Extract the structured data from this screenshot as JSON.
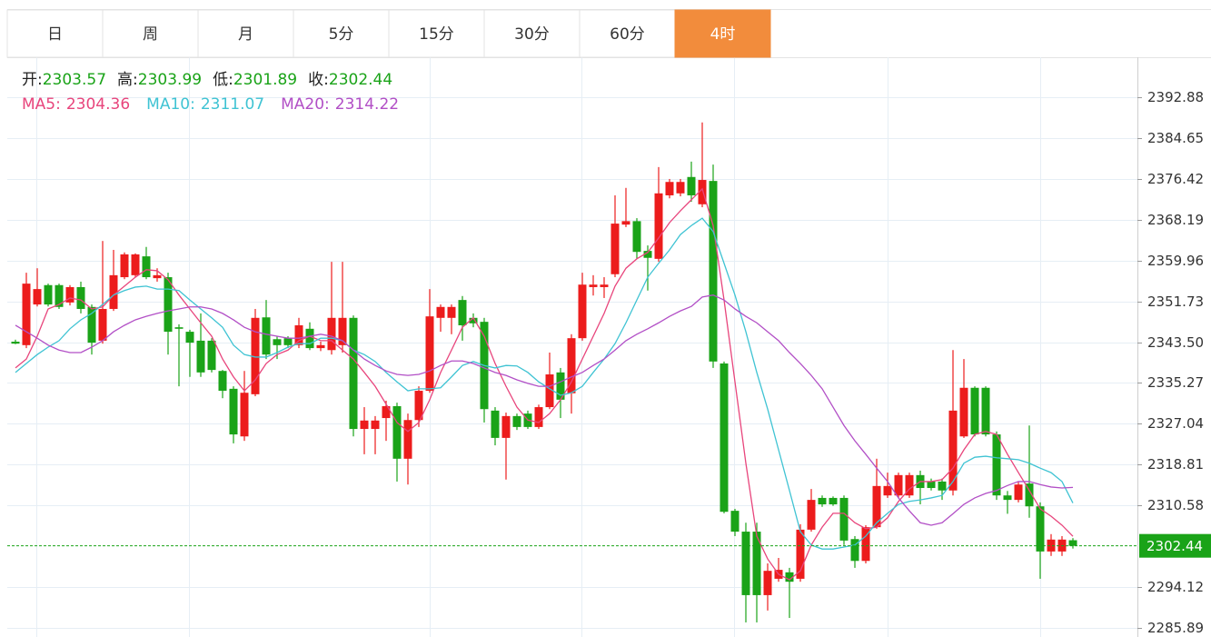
{
  "tabs": {
    "items": [
      "日",
      "周",
      "月",
      "5分",
      "15分",
      "30分",
      "60分",
      "4时"
    ],
    "active": 7,
    "active_color": "#f28c3c"
  },
  "chart_data": {
    "type": "candlestick",
    "up_color": "#ec1c1c",
    "down_color": "#1aa318",
    "ohlc_labels": [
      "开:",
      "高:",
      "低:",
      "收:"
    ],
    "open": [
      2343.6,
      2342.9,
      2351.1,
      2355.0,
      2355.0,
      2351.5,
      2354.6,
      2350.6,
      2343.8,
      2350.2,
      2356.6,
      2357.0,
      2360.8,
      2356.4,
      2356.6,
      2346.5,
      2345.6,
      2343.8,
      2343.8,
      2337.7,
      2334.1,
      2324.5,
      2333.0,
      2348.5,
      2344.1,
      2344.3,
      2342.9,
      2346.2,
      2342.3,
      2341.9,
      2342.9,
      2348.4,
      2326.0,
      2326.0,
      2328.2,
      2330.6,
      2320.0,
      2327.8,
      2333.7,
      2348.4,
      2348.4,
      2352.0,
      2348.4,
      2347.6,
      2329.7,
      2324.2,
      2328.6,
      2329.1,
      2326.4,
      2330.4,
      2337.4,
      2333.2,
      2344.3,
      2354.6,
      2354.6,
      2357.2,
      2367.2,
      2367.9,
      2361.9,
      2360.3,
      2373.1,
      2373.5,
      2376.8,
      2371.3,
      2376.0,
      2339.2,
      2309.5,
      2305.3,
      2305.3,
      2292.5,
      2295.8,
      2297.1,
      2295.8,
      2305.7,
      2312.1,
      2312.1,
      2312.1,
      2303.8,
      2299.4,
      2306.2,
      2312.6,
      2312.6,
      2312.6,
      2316.7,
      2315.4,
      2315.4,
      2313.6,
      2324.5,
      2334.3,
      2334.3,
      2324.9,
      2312.6,
      2311.7,
      2315.0,
      2310.4,
      2301.3,
      2301.3,
      2303.57
    ],
    "high": [
      2344.0,
      2357.5,
      2358.4,
      2355.3,
      2355.3,
      2355.0,
      2355.7,
      2351.1,
      2363.9,
      2362.1,
      2361.6,
      2361.4,
      2362.7,
      2358.4,
      2357.5,
      2347.1,
      2346.0,
      2349.3,
      2344.3,
      2337.9,
      2334.6,
      2337.7,
      2350.2,
      2352.0,
      2344.7,
      2344.7,
      2348.4,
      2347.5,
      2343.6,
      2359.7,
      2359.7,
      2348.9,
      2330.4,
      2328.6,
      2331.7,
      2331.3,
      2329.1,
      2334.6,
      2354.2,
      2351.1,
      2351.1,
      2352.8,
      2349.3,
      2348.4,
      2330.4,
      2329.3,
      2329.1,
      2329.7,
      2330.9,
      2341.4,
      2338.3,
      2345.1,
      2357.5,
      2357.0,
      2356.6,
      2373.1,
      2374.6,
      2368.5,
      2363.0,
      2378.8,
      2376.4,
      2376.4,
      2379.9,
      2387.8,
      2379.3,
      2339.6,
      2309.9,
      2307.1,
      2307.1,
      2298.9,
      2300.0,
      2298.0,
      2306.8,
      2313.9,
      2312.6,
      2312.4,
      2312.6,
      2304.4,
      2306.6,
      2320.0,
      2317.2,
      2317.2,
      2317.2,
      2317.6,
      2316.0,
      2316.0,
      2341.9,
      2340.1,
      2334.6,
      2334.6,
      2325.5,
      2313.5,
      2315.4,
      2326.7,
      2311.2,
      2304.8,
      2304.4,
      2303.99
    ],
    "low": [
      2343.1,
      2342.3,
      2350.7,
      2350.7,
      2350.2,
      2350.9,
      2349.3,
      2341.0,
      2343.2,
      2349.8,
      2356.2,
      2356.6,
      2356.2,
      2355.7,
      2341.0,
      2334.6,
      2336.5,
      2336.5,
      2337.4,
      2332.2,
      2323.1,
      2323.6,
      2332.6,
      2340.1,
      2340.1,
      2342.3,
      2342.3,
      2341.9,
      2341.7,
      2341.0,
      2341.4,
      2324.5,
      2320.9,
      2320.9,
      2323.6,
      2315.4,
      2314.8,
      2326.4,
      2333.3,
      2345.6,
      2345.1,
      2343.8,
      2346.5,
      2327.3,
      2322.7,
      2315.8,
      2325.8,
      2326.0,
      2326.0,
      2330.0,
      2328.2,
      2329.1,
      2343.8,
      2352.9,
      2352.4,
      2356.6,
      2366.7,
      2360.3,
      2353.9,
      2359.7,
      2372.5,
      2372.9,
      2371.8,
      2370.7,
      2338.3,
      2309.0,
      2304.4,
      2287.0,
      2287.0,
      2289.4,
      2295.2,
      2287.9,
      2295.2,
      2305.3,
      2310.3,
      2310.5,
      2302.6,
      2298.0,
      2298.9,
      2305.9,
      2312.1,
      2312.1,
      2312.1,
      2310.8,
      2313.6,
      2311.7,
      2312.6,
      2324.2,
      2324.5,
      2324.5,
      2311.7,
      2308.9,
      2311.2,
      2308.1,
      2295.8,
      2300.4,
      2300.4,
      2301.89
    ],
    "close": [
      2343.2,
      2355.3,
      2354.2,
      2351.1,
      2350.6,
      2354.6,
      2350.2,
      2343.4,
      2350.2,
      2357.0,
      2361.2,
      2361.2,
      2356.6,
      2357.0,
      2345.6,
      2346.2,
      2343.4,
      2337.4,
      2337.9,
      2333.7,
      2324.9,
      2333.3,
      2348.4,
      2341.0,
      2342.9,
      2342.9,
      2346.9,
      2342.3,
      2342.9,
      2348.4,
      2348.4,
      2326.0,
      2327.7,
      2327.7,
      2330.6,
      2320.0,
      2327.8,
      2333.7,
      2348.7,
      2350.6,
      2350.6,
      2346.9,
      2347.3,
      2330.0,
      2324.2,
      2328.6,
      2326.4,
      2326.4,
      2330.4,
      2337.0,
      2331.9,
      2344.3,
      2355.1,
      2355.1,
      2355.1,
      2367.4,
      2367.9,
      2361.7,
      2360.5,
      2373.5,
      2375.8,
      2375.8,
      2373.1,
      2376.2,
      2339.6,
      2309.3,
      2305.3,
      2292.5,
      2292.5,
      2297.4,
      2297.6,
      2295.2,
      2305.7,
      2311.7,
      2310.8,
      2310.8,
      2303.5,
      2299.4,
      2306.2,
      2314.5,
      2314.5,
      2316.7,
      2316.7,
      2314.1,
      2314.1,
      2313.6,
      2329.7,
      2334.3,
      2324.9,
      2324.9,
      2312.6,
      2311.7,
      2314.8,
      2310.4,
      2301.3,
      2303.7,
      2303.7,
      2302.44
    ],
    "series": [
      {
        "name": "MA5:",
        "color": "#e8457c",
        "values": [
          2338.3,
          2340.1,
          2344.7,
          2350.2,
          2351.1,
          2352.4,
          2352.0,
          2350.2,
          2350.6,
          2353.0,
          2354.8,
          2356.6,
          2358.1,
          2357.9,
          2356.1,
          2353.0,
          2350.2,
          2347.4,
          2344.7,
          2340.1,
          2336.5,
          2333.7,
          2335.9,
          2339.2,
          2341.0,
          2341.9,
          2343.8,
          2344.7,
          2343.8,
          2343.8,
          2341.9,
          2340.1,
          2337.4,
          2334.6,
          2331.0,
          2327.3,
          2325.5,
          2327.3,
          2331.9,
          2337.4,
          2341.9,
          2346.5,
          2348.4,
          2344.7,
          2339.2,
          2334.6,
          2330.4,
          2327.8,
          2327.3,
          2329.1,
          2331.9,
          2335.5,
          2340.1,
          2344.7,
          2349.3,
          2354.8,
          2358.4,
          2360.3,
          2361.6,
          2364.5,
          2367.6,
          2370.0,
          2372.2,
          2374.4,
          2367.0,
          2352.0,
          2335.5,
          2319.1,
          2304.4,
          2299.8,
          2296.7,
          2295.6,
          2297.4,
          2302.6,
          2306.2,
          2309.0,
          2309.0,
          2307.1,
          2305.9,
          2306.2,
          2308.1,
          2311.4,
          2313.9,
          2315.4,
          2315.4,
          2315.8,
          2318.1,
          2321.8,
          2324.9,
          2325.5,
          2324.9,
          2320.9,
          2317.2,
          2313.6,
          2309.9,
          2308.4,
          2306.6,
          2304.36
        ]
      },
      {
        "name": "MA10:",
        "color": "#3fc3d3",
        "values": [
          2337.4,
          2339.2,
          2341.0,
          2342.5,
          2343.8,
          2346.2,
          2348.0,
          2349.3,
          2351.1,
          2353.0,
          2353.9,
          2354.6,
          2354.8,
          2354.2,
          2354.2,
          2353.9,
          2352.0,
          2350.2,
          2348.4,
          2346.5,
          2342.9,
          2341.0,
          2340.5,
          2340.5,
          2341.4,
          2342.5,
          2343.2,
          2343.2,
          2344.3,
          2344.3,
          2343.8,
          2341.9,
          2341.0,
          2339.6,
          2337.4,
          2335.5,
          2333.7,
          2334.1,
          2334.1,
          2334.3,
          2336.5,
          2338.8,
          2339.6,
          2338.8,
          2338.3,
          2338.8,
          2338.7,
          2337.4,
          2335.5,
          2334.1,
          2332.8,
          2333.3,
          2334.6,
          2337.4,
          2340.1,
          2343.2,
          2347.4,
          2352.0,
          2356.6,
          2359.4,
          2362.1,
          2365.2,
          2367.0,
          2368.5,
          2365.8,
          2359.4,
          2353.0,
          2345.6,
          2337.4,
          2330.0,
          2321.8,
          2313.6,
          2305.3,
          2302.6,
          2301.8,
          2301.8,
          2302.2,
          2302.6,
          2304.4,
          2307.1,
          2309.0,
          2310.8,
          2311.4,
          2311.7,
          2312.1,
          2312.6,
          2315.4,
          2319.1,
          2320.3,
          2320.5,
          2320.2,
          2320.0,
          2319.8,
          2319.1,
          2318.1,
          2317.2,
          2315.4,
          2311.07
        ]
      },
      {
        "name": "MA20:",
        "color": "#b24fc6",
        "values": [
          2346.9,
          2345.6,
          2344.3,
          2342.9,
          2341.9,
          2341.4,
          2341.4,
          2342.5,
          2343.8,
          2345.6,
          2346.9,
          2348.0,
          2348.7,
          2349.3,
          2349.8,
          2350.2,
          2350.6,
          2350.6,
          2350.2,
          2349.3,
          2348.0,
          2346.5,
          2345.6,
          2345.1,
          2344.7,
          2344.3,
          2344.3,
          2344.7,
          2345.1,
          2344.7,
          2343.8,
          2341.9,
          2340.1,
          2338.8,
          2337.7,
          2337.0,
          2336.8,
          2337.0,
          2337.7,
          2338.8,
          2339.7,
          2339.7,
          2339.2,
          2338.3,
          2337.4,
          2336.8,
          2335.9,
          2335.2,
          2334.6,
          2334.6,
          2335.5,
          2336.5,
          2337.4,
          2338.8,
          2340.1,
          2341.9,
          2343.8,
          2345.1,
          2346.2,
          2347.4,
          2348.7,
          2349.8,
          2350.7,
          2352.6,
          2353.0,
          2352.0,
          2350.2,
          2348.7,
          2347.4,
          2345.6,
          2343.8,
          2341.4,
          2339.2,
          2336.8,
          2334.1,
          2330.4,
          2326.7,
          2323.6,
          2320.9,
          2318.1,
          2315.4,
          2312.1,
          2309.5,
          2307.1,
          2306.6,
          2307.1,
          2308.9,
          2310.8,
          2312.1,
          2313.0,
          2313.6,
          2314.6,
          2315.4,
          2315.4,
          2314.8,
          2314.3,
          2314.1,
          2314.22
        ]
      }
    ],
    "ylim": [
      2284.06,
      2400.94
    ],
    "yticks": [
      2392.88,
      2384.65,
      2376.42,
      2368.19,
      2359.96,
      2351.73,
      {
        "value": 2343.5,
        "label": "2343.50"
      },
      2335.27,
      2327.04,
      2318.81,
      2310.58,
      2294.12,
      2285.89
    ],
    "grid": true
  }
}
